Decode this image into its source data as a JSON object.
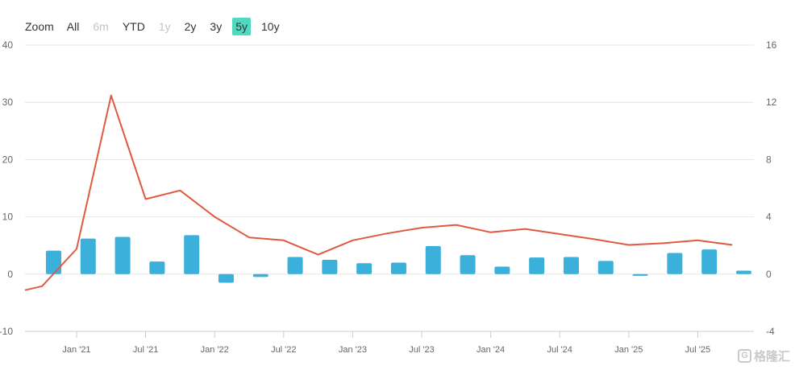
{
  "zoom": {
    "label": "Zoom",
    "buttons": [
      {
        "label": "All",
        "state": "normal"
      },
      {
        "label": "6m",
        "state": "disabled"
      },
      {
        "label": "YTD",
        "state": "normal"
      },
      {
        "label": "1y",
        "state": "disabled"
      },
      {
        "label": "2y",
        "state": "normal"
      },
      {
        "label": "3y",
        "state": "normal"
      },
      {
        "label": "5y",
        "state": "active"
      },
      {
        "label": "10y",
        "state": "normal"
      }
    ]
  },
  "watermark": {
    "logo_text": "G",
    "text": "格隆汇"
  },
  "chart_data": {
    "type": "bar+line",
    "title": "",
    "x_tick_labels": [
      "Jan '21",
      "Jul '21",
      "Jan '22",
      "Jul '22",
      "Jan '23",
      "Jul '23",
      "Jan '24",
      "Jul '24",
      "Jan '25",
      "Jul '25"
    ],
    "y_left": {
      "ticks": [
        -10,
        0,
        10,
        20,
        30,
        40
      ],
      "range": [
        -10,
        40
      ]
    },
    "y_right": {
      "ticks": [
        -4,
        0,
        4,
        8,
        12,
        16
      ],
      "range": [
        -4,
        16
      ]
    },
    "grid": true,
    "colors": {
      "bars": "#3ab0db",
      "line": "#e05a3f",
      "grid": "#e6e6e6",
      "axis_text": "#666666"
    },
    "series": [
      {
        "type": "bar",
        "axis": "left",
        "x": [
          "2020-11",
          "2021-02",
          "2021-05",
          "2021-08",
          "2021-11",
          "2022-02",
          "2022-05",
          "2022-08",
          "2022-11",
          "2023-02",
          "2023-05",
          "2023-08",
          "2023-11",
          "2024-02",
          "2024-05",
          "2024-08",
          "2024-11",
          "2025-02",
          "2025-05",
          "2025-08",
          "2025-11"
        ],
        "values": [
          4.1,
          6.2,
          6.5,
          2.2,
          6.8,
          -1.5,
          -0.5,
          3.0,
          2.5,
          1.9,
          2.0,
          4.9,
          3.3,
          1.3,
          2.9,
          3.0,
          2.3,
          -0.3,
          3.7,
          4.3,
          0.6
        ]
      },
      {
        "type": "line",
        "axis": "left",
        "x": [
          "2020-07",
          "2020-10",
          "2021-01",
          "2021-04",
          "2021-07",
          "2021-10",
          "2022-01",
          "2022-04",
          "2022-07",
          "2022-10",
          "2023-01",
          "2023-04",
          "2023-07",
          "2023-10",
          "2024-01",
          "2024-04",
          "2024-07",
          "2024-10",
          "2025-01",
          "2025-04",
          "2025-07",
          "2025-10"
        ],
        "values": [
          -2.8,
          -2.1,
          4.4,
          31.2,
          13.1,
          14.6,
          10.0,
          6.4,
          5.9,
          3.4,
          5.9,
          7.1,
          8.1,
          8.6,
          7.3,
          7.9,
          7.0,
          6.1,
          5.1,
          5.4,
          5.9,
          5.1
        ]
      }
    ]
  }
}
